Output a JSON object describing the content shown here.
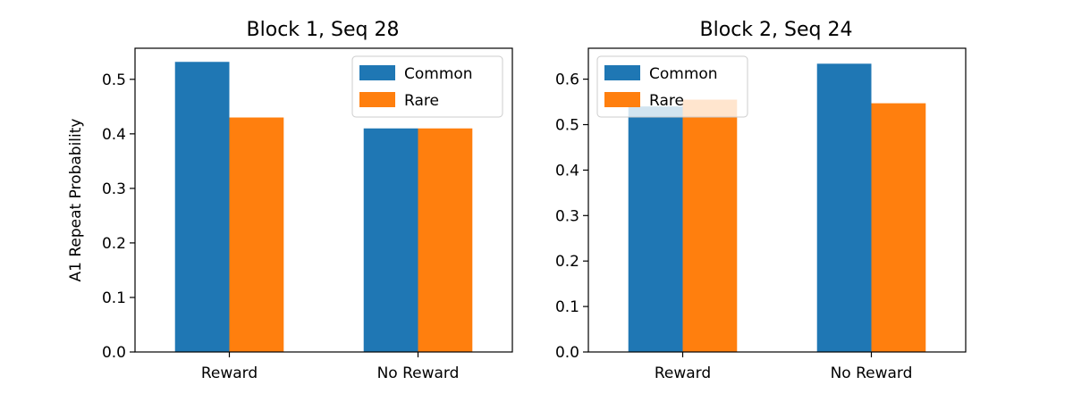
{
  "chart_data": [
    {
      "type": "bar",
      "title": "Block 1, Seq 28",
      "xlabel": "",
      "ylabel": "A1 Repeat Probability",
      "categories": [
        "Reward",
        "No Reward"
      ],
      "series": [
        {
          "name": "Common",
          "values": [
            0.532,
            0.41
          ],
          "color": "#1f77b4"
        },
        {
          "name": "Rare",
          "values": [
            0.43,
            0.41
          ],
          "color": "#ff7f0e"
        }
      ],
      "ylim": [
        0,
        0.557
      ],
      "yticks": [
        "0.0",
        "0.1",
        "0.2",
        "0.3",
        "0.4",
        "0.5"
      ],
      "grid": false,
      "legend": "upper right"
    },
    {
      "type": "bar",
      "title": "Block 2, Seq 24",
      "xlabel": "",
      "ylabel": "",
      "categories": [
        "Reward",
        "No Reward"
      ],
      "series": [
        {
          "name": "Common",
          "values": [
            0.54,
            0.634
          ],
          "color": "#1f77b4"
        },
        {
          "name": "Rare",
          "values": [
            0.555,
            0.547
          ],
          "color": "#ff7f0e"
        }
      ],
      "ylim": [
        0,
        0.668
      ],
      "yticks": [
        "0.0",
        "0.1",
        "0.2",
        "0.3",
        "0.4",
        "0.5",
        "0.6"
      ],
      "grid": false,
      "legend": "upper left"
    }
  ]
}
